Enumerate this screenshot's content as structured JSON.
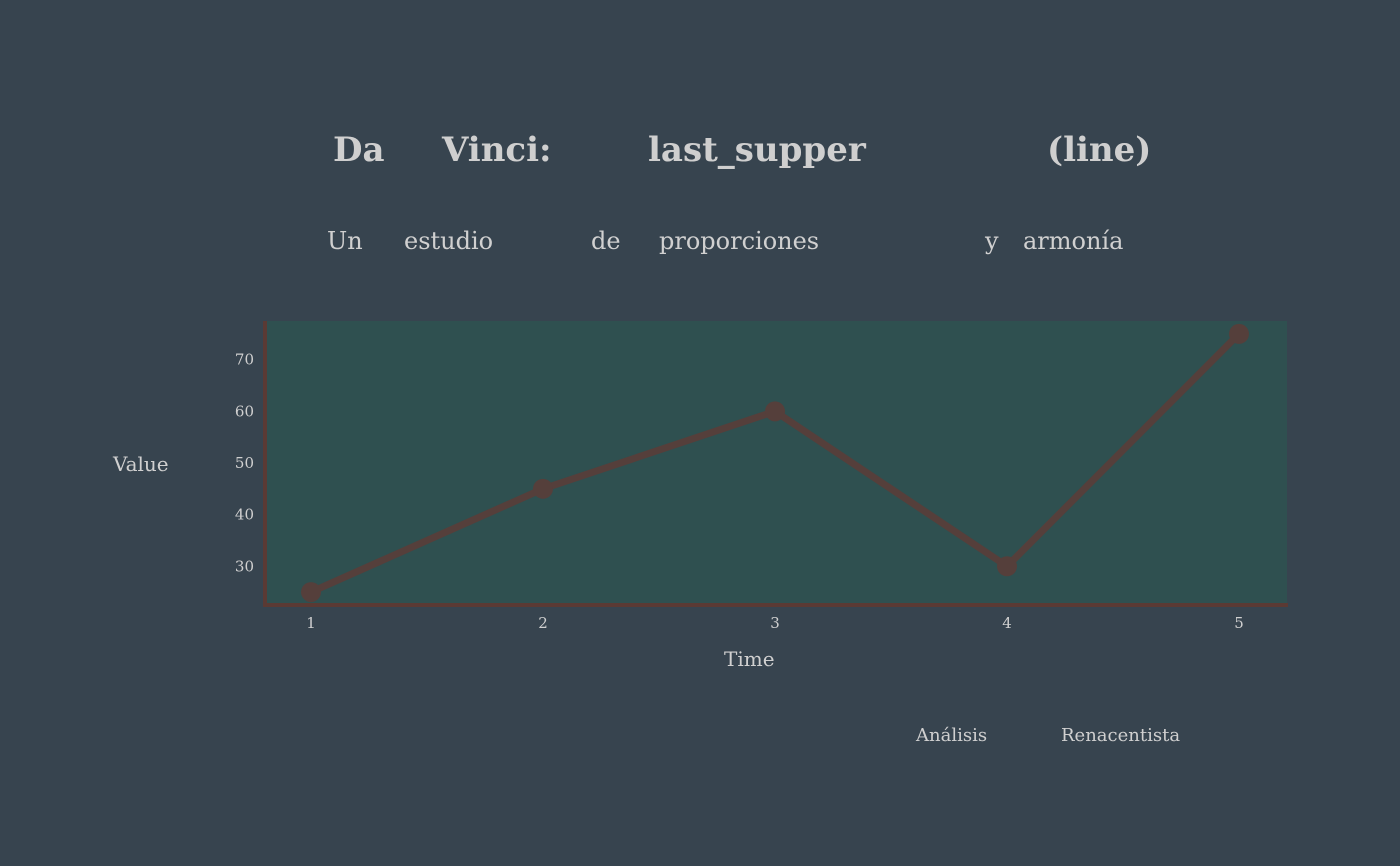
{
  "colors": {
    "background": "#37444f",
    "plot_background": "#2f5050",
    "axis_line": "#5a3a34",
    "series_line": "#553f3b",
    "text": "#d0d0d0"
  },
  "title_words": [
    "Da",
    "Vinci:",
    "last_supper",
    "(line)"
  ],
  "subtitle_words": [
    "Un",
    "estudio",
    "de",
    "proporciones",
    "y",
    "armonía"
  ],
  "footer_words": [
    "Análisis",
    "Renacentista"
  ],
  "chart_data": {
    "type": "line",
    "title": "Da Vinci: last_supper (line)",
    "subtitle": "Un estudio de proporciones y armonía",
    "xlabel": "Time",
    "ylabel": "Value",
    "x": [
      1,
      2,
      3,
      4,
      5
    ],
    "x_tick_labels": [
      "1",
      "2",
      "3",
      "4",
      "5"
    ],
    "y_tick_values": [
      30,
      40,
      50,
      60,
      70
    ],
    "y_tick_labels": [
      "30",
      "40",
      "50",
      "60",
      "70"
    ],
    "ylim": [
      22.5,
      77.5
    ],
    "series": [
      {
        "values": [
          25,
          45,
          60,
          30,
          75
        ]
      }
    ],
    "markers": true,
    "grid": false,
    "legend": "none"
  }
}
